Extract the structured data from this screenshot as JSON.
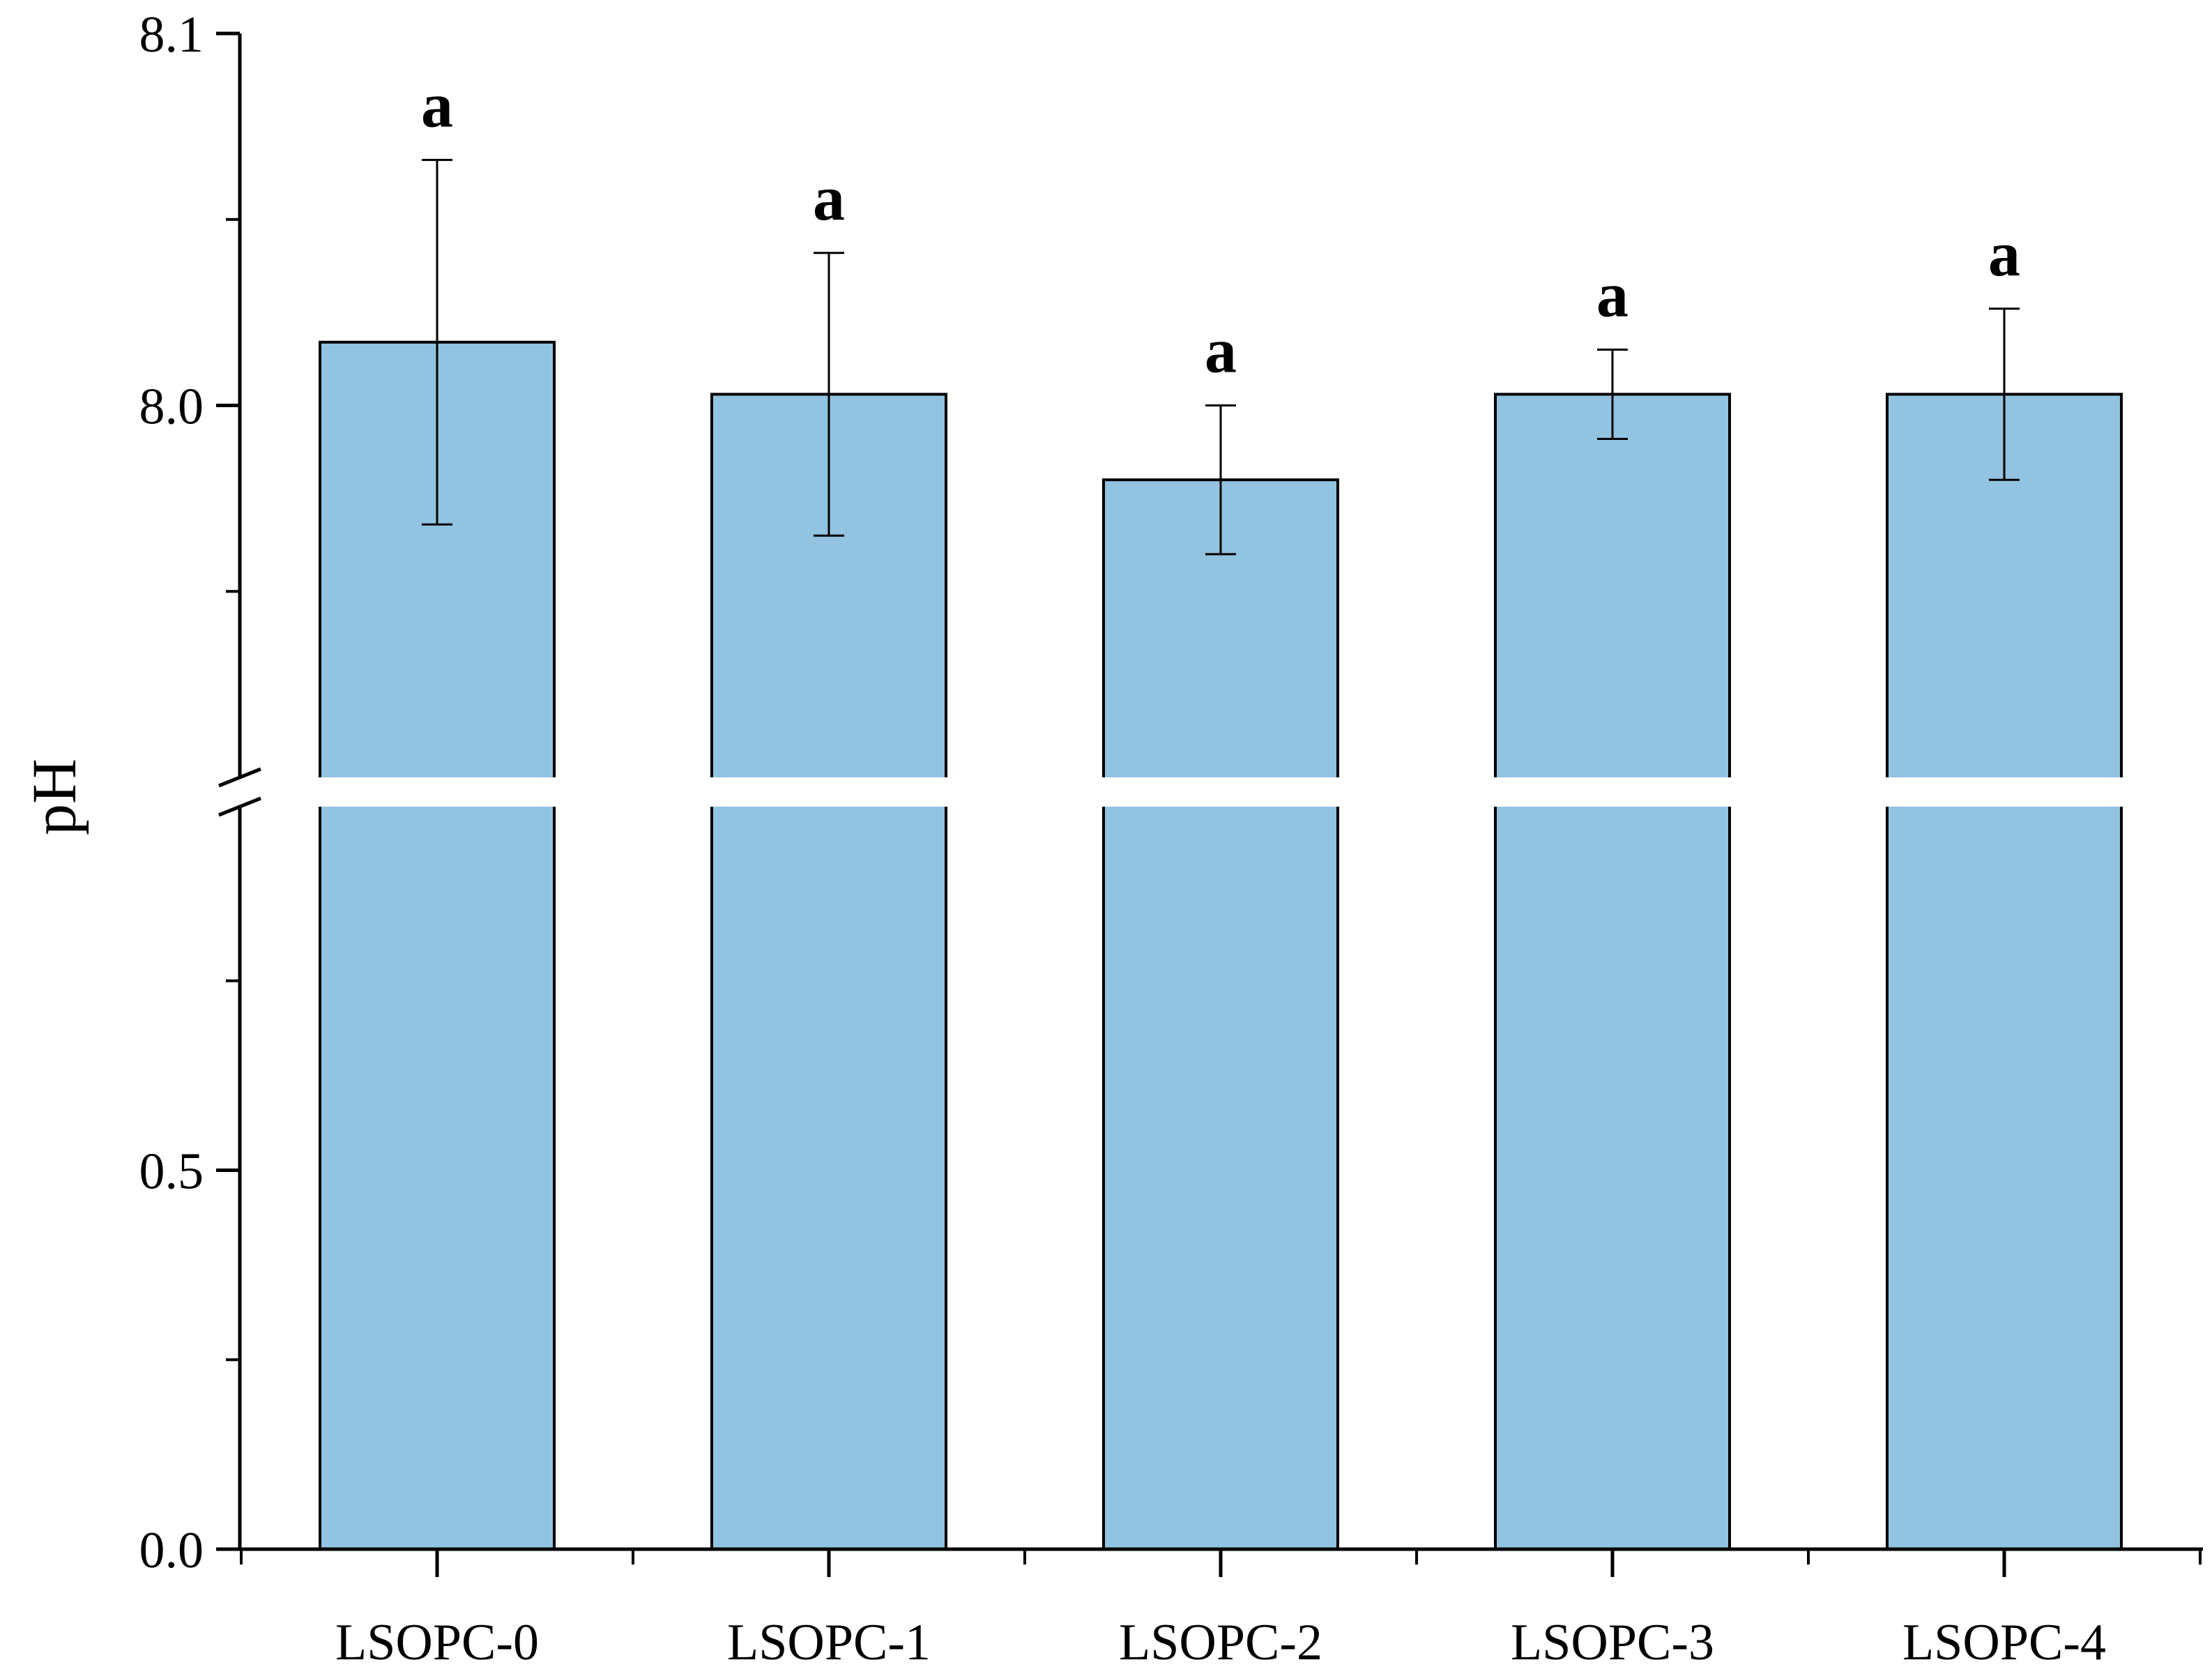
{
  "chart_data": {
    "type": "bar",
    "title": "",
    "xlabel": "",
    "ylabel": "pH",
    "categories": [
      "LSOPC-0",
      "LSOPC-1",
      "LSOPC-2",
      "LSOPC-3",
      "LSOPC-4"
    ],
    "values": [
      8.017,
      8.003,
      7.98,
      8.003,
      8.003
    ],
    "errors": [
      0.049,
      0.038,
      0.02,
      0.012,
      0.023
    ],
    "significance": [
      "a",
      "a",
      "a",
      "a",
      "a"
    ],
    "axis_break": true,
    "y_lower_segment": [
      0,
      1.0
    ],
    "y_upper_segment": [
      7.9,
      8.1
    ],
    "y_lower_ticks": [
      "0.0",
      "0.5"
    ],
    "y_upper_ticks": [
      "8.0",
      "8.1"
    ],
    "bar_color": "#92c3e0",
    "grid": false,
    "legend": "none"
  }
}
